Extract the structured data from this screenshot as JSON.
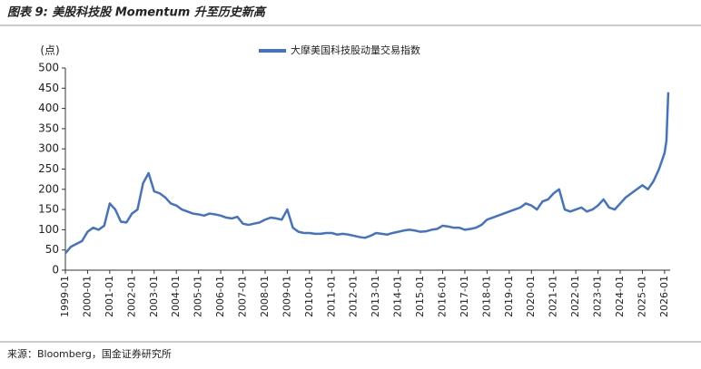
{
  "chart_data": {
    "type": "line",
    "title": "图表 9:  美股科技股 Momentum 升至历史新高",
    "y_label": "(点)",
    "source": "来源：Bloomberg，国金证券研究所",
    "x": [
      "1999-01",
      "1999-04",
      "1999-07",
      "1999-10",
      "2000-01",
      "2000-04",
      "2000-07",
      "2000-10",
      "2001-01",
      "2001-04",
      "2001-07",
      "2001-10",
      "2002-01",
      "2002-04",
      "2002-07",
      "2002-10",
      "2003-01",
      "2003-04",
      "2003-07",
      "2003-10",
      "2004-01",
      "2004-04",
      "2004-07",
      "2004-10",
      "2005-01",
      "2005-04",
      "2005-07",
      "2005-10",
      "2006-01",
      "2006-04",
      "2006-07",
      "2006-10",
      "2007-01",
      "2007-04",
      "2007-07",
      "2007-10",
      "2008-01",
      "2008-04",
      "2008-07",
      "2008-10",
      "2009-01",
      "2009-04",
      "2009-07",
      "2009-10",
      "2010-01",
      "2010-04",
      "2010-07",
      "2010-10",
      "2011-01",
      "2011-04",
      "2011-07",
      "2011-10",
      "2012-01",
      "2012-04",
      "2012-07",
      "2012-10",
      "2013-01",
      "2013-04",
      "2013-07",
      "2013-10",
      "2014-01",
      "2014-04",
      "2014-07",
      "2014-10",
      "2015-01",
      "2015-04",
      "2015-07",
      "2015-10",
      "2016-01",
      "2016-04",
      "2016-07",
      "2016-10",
      "2017-01",
      "2017-04",
      "2017-07",
      "2017-10",
      "2018-01",
      "2018-04",
      "2018-07",
      "2018-10",
      "2019-01",
      "2019-04",
      "2019-07",
      "2019-10",
      "2020-01",
      "2020-04",
      "2020-07",
      "2020-10",
      "2021-01",
      "2021-04",
      "2021-07",
      "2021-10",
      "2022-01",
      "2022-04",
      "2022-07",
      "2022-10",
      "2023-01",
      "2023-04",
      "2023-07",
      "2023-10",
      "2024-01",
      "2024-04",
      "2024-07",
      "2024-10",
      "2025-01",
      "2025-04",
      "2025-07",
      "2025-10",
      "2026-01",
      "2026-02",
      "2026-03"
    ],
    "series": [
      {
        "name": "大摩美国科技股动量交易指数",
        "color": "#4472c4",
        "values": [
          42,
          58,
          65,
          72,
          95,
          105,
          100,
          110,
          165,
          150,
          120,
          118,
          140,
          150,
          215,
          240,
          195,
          190,
          180,
          165,
          160,
          150,
          145,
          140,
          138,
          135,
          140,
          138,
          135,
          130,
          128,
          132,
          115,
          112,
          115,
          118,
          125,
          130,
          128,
          125,
          150,
          105,
          95,
          92,
          92,
          90,
          90,
          92,
          92,
          88,
          90,
          88,
          85,
          82,
          80,
          85,
          92,
          90,
          88,
          92,
          95,
          98,
          100,
          98,
          95,
          96,
          100,
          102,
          110,
          108,
          105,
          105,
          100,
          102,
          105,
          112,
          125,
          130,
          135,
          140,
          145,
          150,
          155,
          165,
          160,
          150,
          170,
          175,
          190,
          200,
          150,
          145,
          150,
          155,
          145,
          150,
          160,
          175,
          155,
          150,
          165,
          180,
          190,
          200,
          210,
          200,
          220,
          250,
          290,
          320,
          440
        ]
      }
    ],
    "xlim": [
      "1999-01",
      "2026-04"
    ],
    "xticks": [
      "1999-01",
      "2000-01",
      "2001-01",
      "2002-01",
      "2003-01",
      "2004-01",
      "2005-01",
      "2006-01",
      "2007-01",
      "2008-01",
      "2009-01",
      "2010-01",
      "2011-01",
      "2012-01",
      "2013-01",
      "2014-01",
      "2015-01",
      "2016-01",
      "2017-01",
      "2018-01",
      "2019-01",
      "2020-01",
      "2021-01",
      "2022-01",
      "2023-01",
      "2024-01",
      "2025-01",
      "2026-01"
    ],
    "ylim": [
      0,
      500
    ],
    "yticks": [
      0,
      50,
      100,
      150,
      200,
      250,
      300,
      350,
      400,
      450,
      500
    ],
    "legend": "top"
  }
}
